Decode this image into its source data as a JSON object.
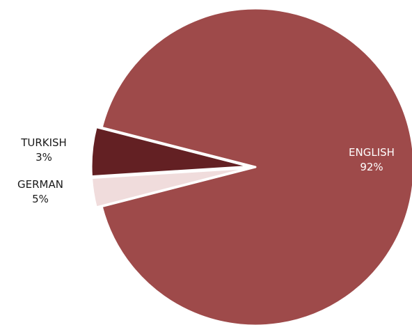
{
  "chart_data": {
    "type": "pie",
    "title": "",
    "exploded": true,
    "slices": [
      {
        "label": "ENGLISH",
        "value": 92,
        "value_label": "92%",
        "color": "#9e4a4a",
        "label_color": "#ffffff"
      },
      {
        "label": "GERMAN",
        "value": 5,
        "value_label": "5%",
        "color": "#632023",
        "label_color": "#1a1a1a"
      },
      {
        "label": "TURKISH",
        "value": 3,
        "value_label": "3%",
        "color": "#f0dcdc",
        "label_color": "#1a1a1a"
      }
    ]
  }
}
